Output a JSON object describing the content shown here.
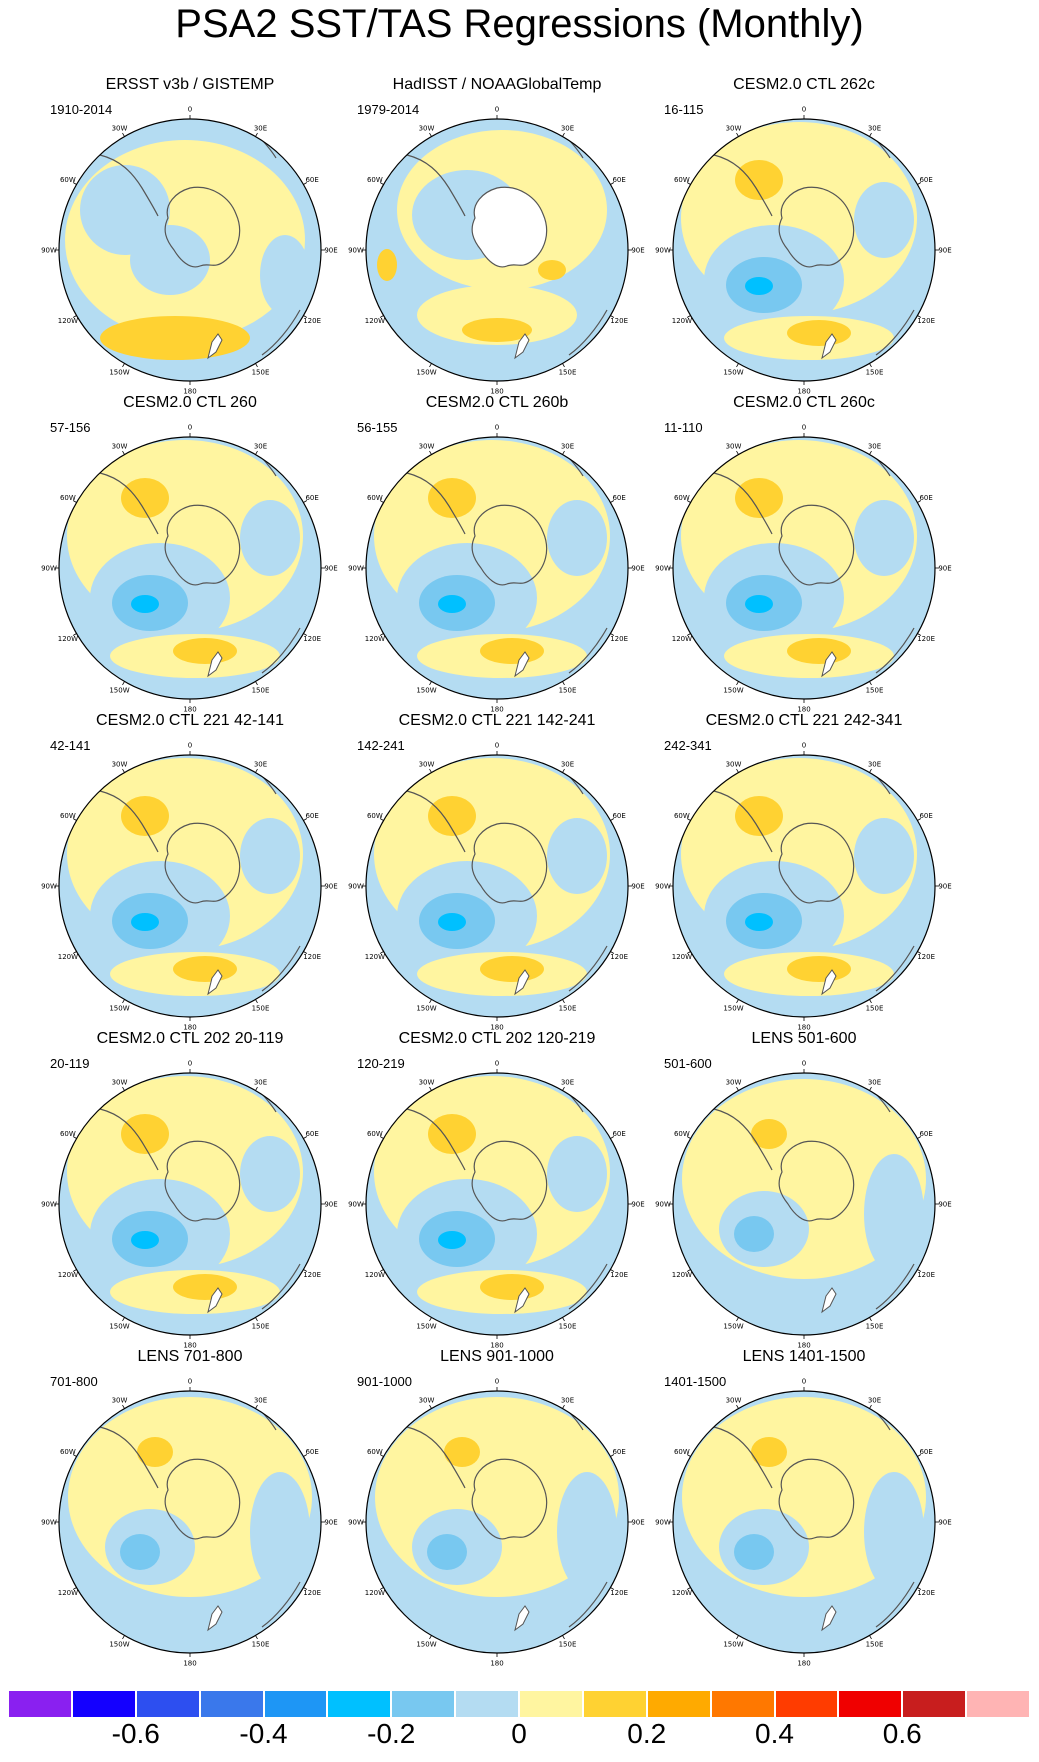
{
  "title": "PSA2 SST/TAS Regressions (Monthly)",
  "panels": [
    {
      "title": "ERSST v3b / GISTEMP",
      "period": "1910-2014",
      "pattern": "obs1"
    },
    {
      "title": "HadISST / NOAAGlobalTemp",
      "period": "1979-2014",
      "pattern": "obs2"
    },
    {
      "title": "CESM2.0 CTL 262c",
      "period": "16-115",
      "pattern": "model"
    },
    {
      "title": "CESM2.0 CTL 260",
      "period": "57-156",
      "pattern": "model"
    },
    {
      "title": "CESM2.0 CTL 260b",
      "period": "56-155",
      "pattern": "model"
    },
    {
      "title": "CESM2.0 CTL 260c",
      "period": "11-110",
      "pattern": "model"
    },
    {
      "title": "CESM2.0 CTL 221 42-141",
      "period": "42-141",
      "pattern": "model"
    },
    {
      "title": "CESM2.0 CTL 221 142-241",
      "period": "142-241",
      "pattern": "model"
    },
    {
      "title": "CESM2.0 CTL 221 242-341",
      "period": "242-341",
      "pattern": "model"
    },
    {
      "title": "CESM2.0 CTL 202 20-119",
      "period": "20-119",
      "pattern": "model"
    },
    {
      "title": "CESM2.0 CTL 202 120-219",
      "period": "120-219",
      "pattern": "model"
    },
    {
      "title": "LENS 501-600",
      "period": "501-600",
      "pattern": "lens"
    },
    {
      "title": "LENS 701-800",
      "period": "701-800",
      "pattern": "lens"
    },
    {
      "title": "LENS 901-1000",
      "period": "901-1000",
      "pattern": "lens"
    },
    {
      "title": "LENS 1401-1500",
      "period": "1401-1500",
      "pattern": "lens"
    }
  ],
  "longitude_labels": [
    "0",
    "30E",
    "60E",
    "90E",
    "120E",
    "150E",
    "180",
    "150W",
    "120W",
    "90W",
    "60W",
    "30W"
  ],
  "colorbar": {
    "colors": [
      "#8a20f0",
      "#1400ff",
      "#2d4ff0",
      "#3a78eb",
      "#1e96f5",
      "#00c0ff",
      "#78c8f0",
      "#b4dcf2",
      "#fff5a0",
      "#ffd232",
      "#ffaa00",
      "#ff7800",
      "#ff3c00",
      "#f00000",
      "#c81e1e",
      "#ffb4b4"
    ],
    "labels": [
      "-0.6",
      "-0.4",
      "-0.2",
      "0",
      "0.2",
      "0.4",
      "0.6"
    ]
  }
}
